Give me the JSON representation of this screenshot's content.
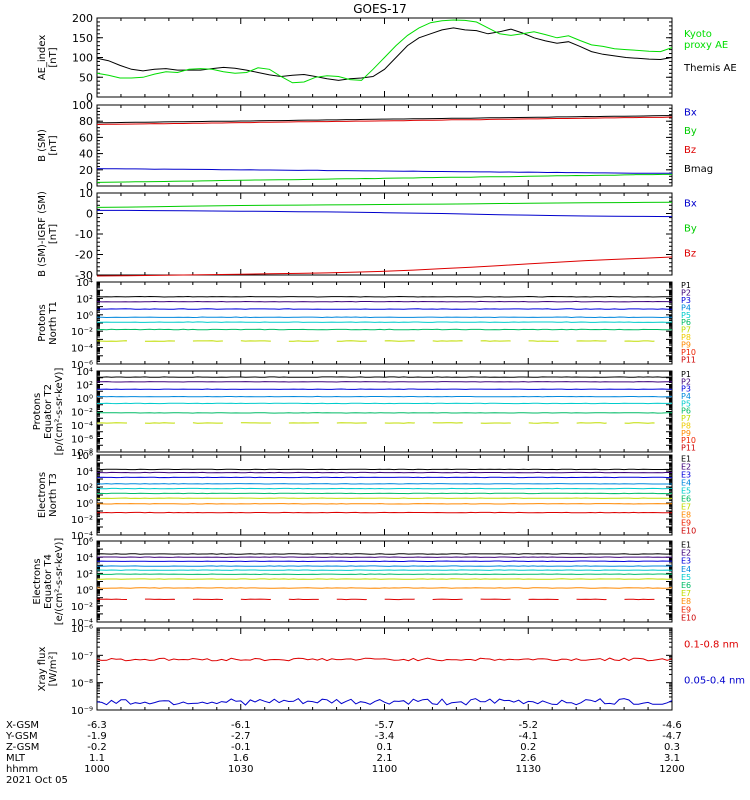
{
  "chart_data": {
    "type": "line",
    "title": "GOES-17",
    "x_range": [
      "10:00",
      "12:00"
    ],
    "x_tick_labels": [
      "1000",
      "1030",
      "1100",
      "1130",
      "1200"
    ],
    "panels": [
      {
        "id": "ae",
        "ylabel": "AE_index\n[nT]",
        "scale": "linear",
        "ylim": [
          0,
          200
        ],
        "ytick_labels": [
          "0",
          "50",
          "100",
          "150",
          "200"
        ],
        "legend": [
          {
            "label": "Kyoto\nproxy AE",
            "color": "#00dd00"
          },
          {
            "label": "Themis AE",
            "color": "#000000"
          }
        ],
        "series": [
          {
            "name": "Themis AE",
            "color": "#000000",
            "values": [
              98,
              92,
              80,
              70,
              66,
              70,
              72,
              68,
              68,
              68,
              72,
              75,
              73,
              68,
              62,
              56,
              52,
              55,
              57,
              52,
              46,
              42,
              46,
              48,
              52,
              70,
              100,
              130,
              150,
              160,
              170,
              175,
              170,
              168,
              160,
              165,
              172,
              162,
              150,
              142,
              136,
              140,
              128,
              115,
              108,
              104,
              100,
              98,
              96,
              95,
              100
            ]
          },
          {
            "name": "Kyoto proxy AE",
            "color": "#00dd00",
            "values": [
              60,
              55,
              48,
              48,
              50,
              58,
              64,
              62,
              70,
              72,
              70,
              64,
              60,
              62,
              74,
              70,
              52,
              36,
              38,
              50,
              54,
              52,
              44,
              42,
              70,
              100,
              130,
              156,
              175,
              188,
              193,
              195,
              194,
              190,
              175,
              160,
              156,
              160,
              165,
              158,
              150,
              155,
              143,
              132,
              128,
              122,
              120,
              118,
              116,
              115,
              125
            ]
          }
        ]
      },
      {
        "id": "bsm",
        "ylabel": "B (SM)\n[nT]",
        "scale": "linear",
        "ylim": [
          0,
          100
        ],
        "ytick_labels": [
          "0",
          "20",
          "40",
          "60",
          "80",
          "100"
        ],
        "legend": [
          {
            "label": "Bx",
            "color": "#0000cc"
          },
          {
            "label": "By",
            "color": "#00cc00"
          },
          {
            "label": "Bz",
            "color": "#dd0000"
          },
          {
            "label": "Bmag",
            "color": "#000000"
          }
        ],
        "series": [
          {
            "name": "Bx",
            "color": "#0000cc",
            "start": 21.5,
            "end": 15.5
          },
          {
            "name": "By",
            "color": "#00cc00",
            "start": 4.5,
            "end": 14.5
          },
          {
            "name": "Bz",
            "color": "#dd0000",
            "start": 76,
            "end": 85
          },
          {
            "name": "Bmag",
            "color": "#000000",
            "start": 78,
            "end": 87
          }
        ]
      },
      {
        "id": "bigrf",
        "ylabel": "B (SM)-IGRF (SM)\n[nT]",
        "scale": "linear",
        "ylim": [
          -30,
          10
        ],
        "ytick_labels": [
          "-30",
          "-20",
          "-10",
          "0",
          "10"
        ],
        "legend": [
          {
            "label": "Bx",
            "color": "#0000cc"
          },
          {
            "label": "By",
            "color": "#00cc00"
          },
          {
            "label": "Bz",
            "color": "#dd0000"
          }
        ],
        "series": [
          {
            "name": "Bx",
            "color": "#0000cc",
            "values": [
              1.5,
              1.5,
              1.4,
              1.3,
              1.2,
              1.1,
              1.0,
              0.9,
              0.8,
              0.6,
              0.4,
              0.2,
              0.0,
              -0.3,
              -0.6,
              -0.8,
              -1.0,
              -1.2,
              -1.3,
              -1.4,
              -1.5
            ]
          },
          {
            "name": "By",
            "color": "#00cc00",
            "values": [
              3.0,
              3.1,
              3.3,
              3.5,
              3.7,
              3.9,
              4.0,
              4.1,
              4.2,
              4.3,
              4.4,
              4.5,
              4.6,
              4.7,
              4.9,
              5.0,
              5.1,
              5.2,
              5.3,
              5.4,
              5.5
            ]
          },
          {
            "name": "Bz",
            "color": "#dd0000",
            "values": [
              -30.5,
              -30.4,
              -30.2,
              -30.0,
              -29.8,
              -29.6,
              -29.4,
              -29.2,
              -29.0,
              -28.6,
              -28.2,
              -27.6,
              -26.9,
              -26.2,
              -25.4,
              -24.6,
              -23.8,
              -23.0,
              -22.4,
              -21.8,
              -21.2
            ]
          }
        ]
      },
      {
        "id": "pnorth",
        "ylabel": "Protons\nNorth T1",
        "scale": "log",
        "ylim_exp": [
          -6,
          4
        ],
        "ytick_exps": [
          -6,
          -4,
          -2,
          0,
          2,
          4
        ],
        "legend": [
          {
            "label": "P1",
            "color": "#000000"
          },
          {
            "label": "P2",
            "color": "#3d007a"
          },
          {
            "label": "P3",
            "color": "#0000dd"
          },
          {
            "label": "P4",
            "color": "#0088dd"
          },
          {
            "label": "P5",
            "color": "#00cccc"
          },
          {
            "label": "P6",
            "color": "#00bb66"
          },
          {
            "label": "P7",
            "color": "#c0dd00"
          },
          {
            "label": "P8",
            "color": "#eecc00"
          },
          {
            "label": "P9",
            "color": "#ff8800"
          },
          {
            "label": "P10",
            "color": "#ee2200"
          },
          {
            "label": "P11",
            "color": "#cc0000"
          }
        ],
        "series": [
          {
            "name": "P1",
            "color": "#000000",
            "log_level": 2.2
          },
          {
            "name": "P2",
            "color": "#3d007a",
            "log_level": 1.6
          },
          {
            "name": "P3",
            "color": "#0000dd",
            "log_level": 0.7
          },
          {
            "name": "P4",
            "color": "#0088dd",
            "log_level": -0.3
          },
          {
            "name": "P5",
            "color": "#00cccc",
            "log_level": -0.9
          },
          {
            "name": "P6",
            "color": "#00bb66",
            "log_level": -1.8
          },
          {
            "name": "P7",
            "color": "#c0dd00",
            "log_level": -3.2,
            "dashed": true
          }
        ]
      },
      {
        "id": "peq",
        "ylabel": "Protons\nEquator T2\n[p/(cm²-s-sr-keV)]",
        "scale": "log",
        "ylim_exp": [
          -8,
          4
        ],
        "ytick_exps": [
          -8,
          -6,
          -4,
          -2,
          0,
          2,
          4
        ],
        "legend": [
          {
            "label": "P1",
            "color": "#000000"
          },
          {
            "label": "P2",
            "color": "#3d007a"
          },
          {
            "label": "P3",
            "color": "#0000dd"
          },
          {
            "label": "P4",
            "color": "#0088dd"
          },
          {
            "label": "P5",
            "color": "#00cccc"
          },
          {
            "label": "P6",
            "color": "#00bb66"
          },
          {
            "label": "P7",
            "color": "#c0dd00"
          },
          {
            "label": "P8",
            "color": "#eecc00"
          },
          {
            "label": "P9",
            "color": "#ff8800"
          },
          {
            "label": "P10",
            "color": "#ee2200"
          },
          {
            "label": "P11",
            "color": "#cc0000"
          }
        ],
        "series": [
          {
            "name": "P1",
            "color": "#000000",
            "log_level": 3.1
          },
          {
            "name": "P2",
            "color": "#3d007a",
            "log_level": 2.4
          },
          {
            "name": "P3",
            "color": "#0000dd",
            "log_level": 1.3
          },
          {
            "name": "P4",
            "color": "#0088dd",
            "log_level": 0.2
          },
          {
            "name": "P5",
            "color": "#00cccc",
            "log_level": -0.8
          },
          {
            "name": "P6",
            "color": "#00bb66",
            "log_level": -2.2
          },
          {
            "name": "P7",
            "color": "#c0dd00",
            "log_level": -3.7,
            "dashed": true
          }
        ]
      },
      {
        "id": "enorth",
        "ylabel": "Electrons\nNorth T3",
        "scale": "log",
        "ylim_exp": [
          -4,
          6
        ],
        "ytick_exps": [
          -4,
          -2,
          0,
          2,
          4,
          6
        ],
        "legend": [
          {
            "label": "E1",
            "color": "#000000"
          },
          {
            "label": "E2",
            "color": "#3d007a"
          },
          {
            "label": "E3",
            "color": "#0000dd"
          },
          {
            "label": "E4",
            "color": "#0088dd"
          },
          {
            "label": "E5",
            "color": "#00cccc"
          },
          {
            "label": "E6",
            "color": "#00bb66"
          },
          {
            "label": "E7",
            "color": "#c0dd00"
          },
          {
            "label": "E8",
            "color": "#ff8800"
          },
          {
            "label": "E9",
            "color": "#ee2200"
          },
          {
            "label": "E10",
            "color": "#cc0000"
          }
        ],
        "series": [
          {
            "name": "E1",
            "color": "#000000",
            "log_level": 4.2
          },
          {
            "name": "E2",
            "color": "#3d007a",
            "log_level": 3.8
          },
          {
            "name": "E3",
            "color": "#0000dd",
            "log_level": 3.2
          },
          {
            "name": "E4",
            "color": "#0088dd",
            "log_level": 2.4
          },
          {
            "name": "E5",
            "color": "#00cccc",
            "log_level": 1.8
          },
          {
            "name": "E6",
            "color": "#00bb66",
            "log_level": 1.2
          },
          {
            "name": "E7",
            "color": "#c0dd00",
            "log_level": 0.6
          },
          {
            "name": "E8",
            "color": "#ff8800",
            "log_level": -0.1
          },
          {
            "name": "E9",
            "color": "#dd0000",
            "log_level": -1.2
          }
        ]
      },
      {
        "id": "eeq",
        "ylabel": "Electrons\nEquator T4\n[e/(cm²-s-sr-keV)]",
        "scale": "log",
        "ylim_exp": [
          -4,
          6
        ],
        "ytick_exps": [
          -4,
          -2,
          0,
          2,
          4,
          6
        ],
        "legend": [
          {
            "label": "E1",
            "color": "#000000"
          },
          {
            "label": "E2",
            "color": "#3d007a"
          },
          {
            "label": "E3",
            "color": "#0000dd"
          },
          {
            "label": "E4",
            "color": "#0088dd"
          },
          {
            "label": "E5",
            "color": "#00cccc"
          },
          {
            "label": "E6",
            "color": "#00bb66"
          },
          {
            "label": "E7",
            "color": "#c0dd00"
          },
          {
            "label": "E8",
            "color": "#ff8800"
          },
          {
            "label": "E9",
            "color": "#ee2200"
          },
          {
            "label": "E10",
            "color": "#cc0000"
          }
        ],
        "series": [
          {
            "name": "E1",
            "color": "#000000",
            "log_level": 4.4
          },
          {
            "name": "E2",
            "color": "#3d007a",
            "log_level": 4.0
          },
          {
            "name": "E3",
            "color": "#0000dd",
            "log_level": 3.5
          },
          {
            "name": "E4",
            "color": "#0088dd",
            "log_level": 2.9
          },
          {
            "name": "E5",
            "color": "#00cccc",
            "log_level": 2.4
          },
          {
            "name": "E6",
            "color": "#00bb66",
            "log_level": 1.9
          },
          {
            "name": "E7",
            "color": "#c0dd00",
            "log_level": 1.3
          },
          {
            "name": "E8",
            "color": "#ff8800",
            "log_level": 0.2
          },
          {
            "name": "E9",
            "color": "#dd0000",
            "log_level": -1.2,
            "dashed": true
          }
        ]
      },
      {
        "id": "xray",
        "ylabel": "Xray flux\n[W/m²]",
        "scale": "log",
        "ylim_exp": [
          -9,
          -6
        ],
        "ytick_exps": [
          -9,
          -8,
          -7,
          -6
        ],
        "legend": [
          {
            "label": "0.1-0.8 nm",
            "color": "#dd0000"
          },
          {
            "label": "0.05-0.4 nm",
            "color": "#0000cc"
          }
        ],
        "series": [
          {
            "name": "0.1-0.8 nm",
            "color": "#dd0000",
            "log_level": -7.15,
            "noise": 0.05
          },
          {
            "name": "0.05-0.4 nm",
            "color": "#0000cc",
            "log_level": -8.7,
            "noise": 0.12
          }
        ]
      }
    ],
    "ephemeris": {
      "rows": [
        {
          "label": "X-GSM",
          "values": [
            "-6.3",
            "-6.1",
            "-5.7",
            "-5.2",
            "-4.6"
          ]
        },
        {
          "label": "Y-GSM",
          "values": [
            "-1.9",
            "-2.7",
            "-3.4",
            "-4.1",
            "-4.7"
          ]
        },
        {
          "label": "Z-GSM",
          "values": [
            "-0.2",
            "-0.1",
            "0.1",
            "0.2",
            "0.3"
          ]
        },
        {
          "label": "MLT",
          "values": [
            "1.1",
            "1.6",
            "2.1",
            "2.6",
            "3.1"
          ]
        },
        {
          "label": "hhmm",
          "values": [
            "1000",
            "1030",
            "1100",
            "1130",
            "1200"
          ]
        }
      ],
      "date": "2021 Oct 05"
    }
  }
}
